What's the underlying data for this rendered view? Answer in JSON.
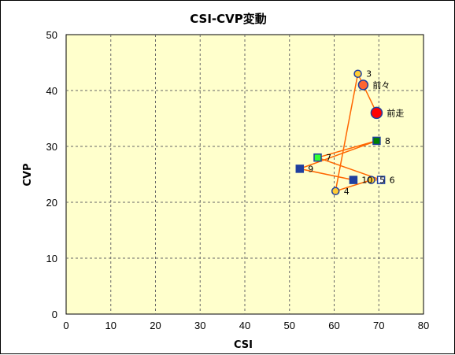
{
  "chart_data": {
    "type": "scatter",
    "title": "CSI-CVP変動",
    "xlabel": "CSI",
    "ylabel": "CVP",
    "xlim": [
      0,
      80
    ],
    "ylim": [
      0,
      50
    ],
    "x_ticks": [
      "0",
      "10",
      "20",
      "30",
      "40",
      "50",
      "60",
      "70",
      "80"
    ],
    "y_ticks": [
      "0",
      "10",
      "20",
      "30",
      "40",
      "50"
    ],
    "grid": true,
    "plot_background": "#ffffcc",
    "line_color": "#ff6600",
    "points": [
      {
        "label": "前走",
        "x": 69.5,
        "y": 36,
        "marker": "circle",
        "fill": "#ff0000",
        "stroke": "#1f3f9f",
        "size": "large"
      },
      {
        "label": "前々",
        "x": 66.5,
        "y": 41,
        "marker": "circle",
        "fill": "#ff6633",
        "stroke": "#1f3f9f",
        "size": "medium"
      },
      {
        "label": "3",
        "x": 65.3,
        "y": 43,
        "marker": "circle",
        "fill": "#ffcc33",
        "stroke": "#1f3f9f",
        "size": "small"
      },
      {
        "label": "4",
        "x": 60.3,
        "y": 22,
        "marker": "circle",
        "fill": "#ffcc33",
        "stroke": "#1f3f9f",
        "size": "small"
      },
      {
        "label": "5",
        "x": 68.3,
        "y": 24,
        "marker": "circle",
        "fill": "#ffcc33",
        "stroke": "#1f3f9f",
        "size": "small"
      },
      {
        "label": "6",
        "x": 70.5,
        "y": 24,
        "marker": "square",
        "fill": "#ffffff",
        "stroke": "#1f3f9f",
        "size": "small"
      },
      {
        "label": "7",
        "x": 56.3,
        "y": 28,
        "marker": "square",
        "fill": "#33ff33",
        "stroke": "#1f3f9f",
        "size": "small"
      },
      {
        "label": "8",
        "x": 69.5,
        "y": 31,
        "marker": "square",
        "fill": "#008000",
        "stroke": "#1f3f9f",
        "size": "small"
      },
      {
        "label": "9",
        "x": 52.3,
        "y": 26,
        "marker": "square",
        "fill": "#1f3f9f",
        "stroke": "#1f3f9f",
        "size": "small"
      },
      {
        "label": "10",
        "x": 64.3,
        "y": 24,
        "marker": "square",
        "fill": "#1f3f9f",
        "stroke": "#1f3f9f",
        "size": "small"
      }
    ]
  }
}
